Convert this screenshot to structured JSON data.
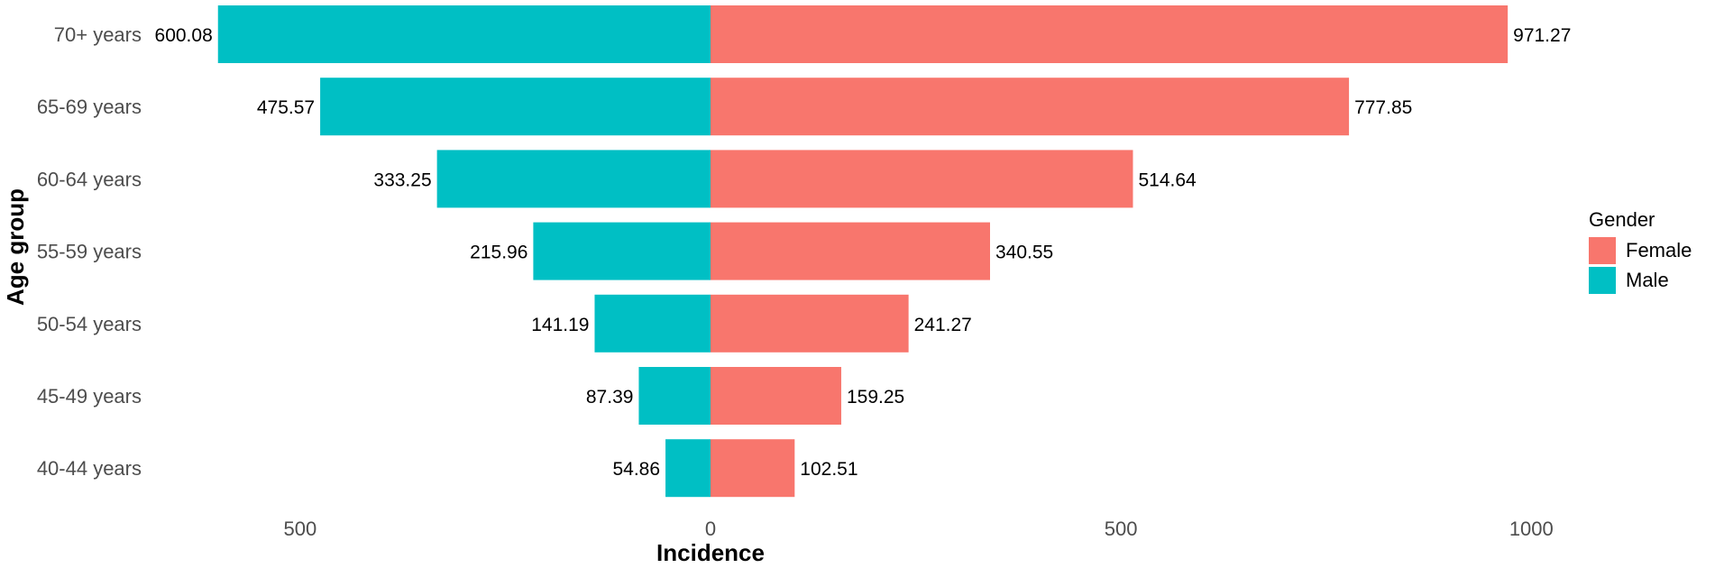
{
  "chart_data": {
    "type": "bar",
    "orientation": "horizontal",
    "layout": "population-pyramid",
    "categories": [
      "70+ years",
      "65-69 years",
      "60-64 years",
      "55-59 years",
      "50-54 years",
      "45-49 years",
      "40-44 years"
    ],
    "series": [
      {
        "name": "Female",
        "color": "#F8766D",
        "side": "right",
        "values": [
          971.27,
          777.85,
          514.64,
          340.55,
          241.27,
          159.25,
          102.51
        ],
        "value_labels": [
          "971.27",
          "777.85",
          "514.64",
          "340.55",
          "241.27",
          "159.25",
          "102.51"
        ]
      },
      {
        "name": "Male",
        "color": "#00BFC4",
        "side": "left",
        "values": [
          600.08,
          475.57,
          333.25,
          215.96,
          141.19,
          87.39,
          54.86
        ],
        "value_labels": [
          "600.08",
          "475.57",
          "333.25",
          "215.96",
          "141.19",
          "87.39",
          "54.86"
        ]
      }
    ],
    "xlabel": "Incidence",
    "ylabel": "Age group",
    "xticks": [
      -500,
      0,
      500,
      1000
    ],
    "xtick_labels": [
      "500",
      "0",
      "500",
      "1000"
    ],
    "xlim": [
      -600.08,
      971.27
    ],
    "legend": {
      "title": "Gender",
      "placement": "right",
      "entries": [
        "Female",
        "Male"
      ]
    },
    "grid": false
  }
}
